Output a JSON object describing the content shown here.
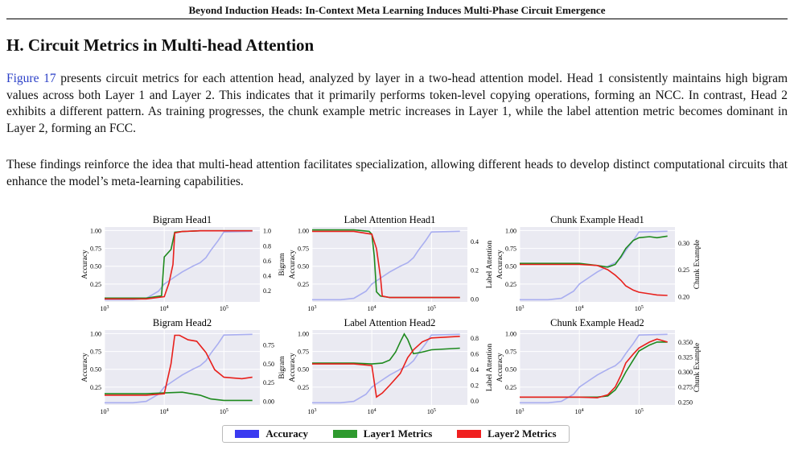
{
  "header": {
    "running_title": "Beyond Induction Heads: In-Context Meta Learning Induces Multi-Phase Circuit Emergence"
  },
  "section": {
    "title": "H. Circuit Metrics in Multi-head Attention"
  },
  "paragraphs": {
    "p1_link": "Figure 17",
    "p1_text": " presents circuit metrics for each attention head, analyzed by layer in a two-head attention model. Head 1 consistently maintains high bigram values across both Layer 1 and Layer 2. This indicates that it primarily performs token-level copying operations, forming an NCC. In contrast, Head 2 exhibits a different pattern. As training progresses, the chunk example metric increases in Layer 1, while the label attention metric becomes dominant in Layer 2, forming an FCC.",
    "p2_text": "These findings reinforce the idea that multi-head attention facilitates specialization, allowing different heads to develop distinct computational circuits that enhance the model’s meta-learning capabilities."
  },
  "colors": {
    "accuracy": "#a9aef0",
    "layer1": "#1e8a1e",
    "layer2": "#e8201c",
    "panel_bg": "#eaeaf2",
    "legend_accuracy": "#3a3af0",
    "legend_layer1": "#2e9a2e",
    "legend_layer2": "#f02020"
  },
  "legend": {
    "accuracy": "Accuracy",
    "layer1": "Layer1 Metrics",
    "layer2": "Layer2 Metrics"
  },
  "chart_data": [
    {
      "type": "line",
      "title": "Bigram Head1",
      "xlabel": "",
      "ylabel_left": "Accuracy",
      "ylabel_right": "Bigram",
      "x_scale": "log",
      "x_ticks": [
        "10^3",
        "10^4",
        "10^5"
      ],
      "y_left_ticks": [
        "1.00",
        "0.75",
        "0.50",
        "0.25"
      ],
      "y_right_ticks": [
        "1.0",
        "0.8",
        "0.6",
        "0.4",
        "0.2"
      ],
      "y_left_range": [
        0,
        1.05
      ],
      "y_right_range": [
        0.05,
        1.05
      ],
      "x_range": [
        1000,
        400000
      ],
      "accuracy": {
        "x": [
          1000,
          3000,
          5000,
          8000,
          10000,
          15000,
          20000,
          30000,
          40000,
          50000,
          60000,
          80000,
          100000,
          300000
        ],
        "y": [
          0.03,
          0.03,
          0.05,
          0.15,
          0.25,
          0.35,
          0.42,
          0.5,
          0.55,
          0.62,
          0.72,
          0.86,
          0.98,
          0.99
        ]
      },
      "series": [
        {
          "name": "Layer1 Metrics",
          "x": [
            1000,
            5000,
            9000,
            10000,
            13000,
            15000,
            20000,
            40000,
            100000,
            300000
          ],
          "y": [
            0.1,
            0.1,
            0.13,
            0.65,
            0.75,
            0.98,
            0.99,
            1.0,
            1.0,
            1.0
          ]
        },
        {
          "name": "Layer2 Metrics",
          "x": [
            1000,
            5000,
            10000,
            12000,
            14000,
            15000,
            20000,
            40000,
            100000,
            300000
          ],
          "y": [
            0.09,
            0.09,
            0.12,
            0.3,
            0.55,
            0.97,
            0.99,
            1.0,
            1.0,
            1.0
          ]
        }
      ]
    },
    {
      "type": "line",
      "title": "Label Attention Head1",
      "xlabel": "",
      "ylabel_left": "Accuracy",
      "ylabel_right": "Label Attention",
      "x_scale": "log",
      "x_ticks": [
        "10^3",
        "10^4",
        "10^5"
      ],
      "y_left_ticks": [
        "1.00",
        "0.75",
        "0.50",
        "0.25"
      ],
      "y_right_ticks": [
        "0.4",
        "0.2",
        "0.0"
      ],
      "y_left_range": [
        0,
        1.05
      ],
      "y_right_range": [
        -0.02,
        0.5
      ],
      "x_range": [
        1000,
        400000
      ],
      "accuracy": {
        "x": [
          1000,
          3000,
          5000,
          8000,
          10000,
          15000,
          20000,
          30000,
          40000,
          50000,
          60000,
          80000,
          100000,
          300000
        ],
        "y": [
          0.03,
          0.03,
          0.05,
          0.15,
          0.25,
          0.35,
          0.42,
          0.5,
          0.55,
          0.62,
          0.72,
          0.86,
          0.98,
          0.99
        ]
      },
      "series": [
        {
          "name": "Layer1 Metrics",
          "x": [
            1000,
            5000,
            9000,
            10000,
            11000,
            12000,
            14000,
            20000,
            50000,
            300000
          ],
          "y": [
            0.48,
            0.48,
            0.47,
            0.45,
            0.3,
            0.05,
            0.02,
            0.01,
            0.01,
            0.01
          ]
        },
        {
          "name": "Layer2 Metrics",
          "x": [
            1000,
            5000,
            10000,
            12000,
            14000,
            15000,
            20000,
            50000,
            300000
          ],
          "y": [
            0.47,
            0.47,
            0.45,
            0.35,
            0.15,
            0.02,
            0.01,
            0.01,
            0.01
          ]
        }
      ]
    },
    {
      "type": "line",
      "title": "Chunk Example Head1",
      "xlabel": "",
      "ylabel_left": "Accuracy",
      "ylabel_right": "Chunk Example",
      "x_scale": "log",
      "x_ticks": [
        "10^3",
        "10^4",
        "10^5"
      ],
      "y_left_ticks": [
        "1.00",
        "0.75",
        "0.50",
        "0.25"
      ],
      "y_right_ticks": [
        "0.30",
        "0.25",
        "0.20"
      ],
      "y_left_range": [
        0,
        1.05
      ],
      "y_right_range": [
        0.19,
        0.33
      ],
      "x_range": [
        1000,
        400000
      ],
      "accuracy": {
        "x": [
          1000,
          3000,
          5000,
          8000,
          10000,
          15000,
          20000,
          30000,
          40000,
          50000,
          60000,
          80000,
          100000,
          300000
        ],
        "y": [
          0.03,
          0.03,
          0.05,
          0.15,
          0.25,
          0.35,
          0.42,
          0.5,
          0.55,
          0.62,
          0.72,
          0.86,
          0.98,
          0.99
        ]
      },
      "series": [
        {
          "name": "Layer1 Metrics",
          "x": [
            1000,
            10000,
            20000,
            30000,
            40000,
            50000,
            60000,
            80000,
            100000,
            150000,
            200000,
            300000
          ],
          "y": [
            0.262,
            0.262,
            0.258,
            0.255,
            0.26,
            0.275,
            0.29,
            0.305,
            0.31,
            0.312,
            0.31,
            0.313
          ]
        },
        {
          "name": "Layer2 Metrics",
          "x": [
            1000,
            10000,
            20000,
            30000,
            40000,
            50000,
            60000,
            80000,
            100000,
            150000,
            200000,
            300000
          ],
          "y": [
            0.26,
            0.26,
            0.258,
            0.25,
            0.24,
            0.23,
            0.22,
            0.212,
            0.208,
            0.205,
            0.203,
            0.202
          ]
        }
      ]
    },
    {
      "type": "line",
      "title": "Bigram Head2",
      "xlabel": "",
      "ylabel_left": "Accuracy",
      "ylabel_right": "Bigram",
      "x_scale": "log",
      "x_ticks": [
        "10^3",
        "10^4",
        "10^5"
      ],
      "y_left_ticks": [
        "1.00",
        "0.75",
        "0.50",
        "0.25"
      ],
      "y_right_ticks": [
        "0.75",
        "0.50",
        "0.25",
        "0.00"
      ],
      "y_left_range": [
        0,
        1.05
      ],
      "y_right_range": [
        -0.05,
        0.95
      ],
      "x_range": [
        1000,
        400000
      ],
      "accuracy": {
        "x": [
          1000,
          3000,
          5000,
          8000,
          10000,
          15000,
          20000,
          30000,
          40000,
          50000,
          60000,
          80000,
          100000,
          300000
        ],
        "y": [
          0.03,
          0.03,
          0.05,
          0.15,
          0.25,
          0.35,
          0.42,
          0.5,
          0.55,
          0.62,
          0.72,
          0.86,
          0.98,
          0.99
        ]
      },
      "series": [
        {
          "name": "Layer1 Metrics",
          "x": [
            1000,
            5000,
            10000,
            20000,
            40000,
            60000,
            100000,
            300000
          ],
          "y": [
            0.1,
            0.1,
            0.11,
            0.12,
            0.08,
            0.03,
            0.01,
            0.01
          ]
        },
        {
          "name": "Layer2 Metrics",
          "x": [
            1000,
            5000,
            10000,
            13000,
            15000,
            18000,
            25000,
            35000,
            50000,
            70000,
            100000,
            200000,
            300000
          ],
          "y": [
            0.08,
            0.08,
            0.1,
            0.5,
            0.88,
            0.88,
            0.82,
            0.8,
            0.65,
            0.42,
            0.32,
            0.3,
            0.32
          ]
        }
      ]
    },
    {
      "type": "line",
      "title": "Label Attention Head2",
      "xlabel": "",
      "ylabel_left": "Accuracy",
      "ylabel_right": "Label Attention",
      "x_scale": "log",
      "x_ticks": [
        "10^3",
        "10^4",
        "10^5"
      ],
      "y_left_ticks": [
        "1.00",
        "0.75",
        "0.50",
        "0.25"
      ],
      "y_right_ticks": [
        "0.8",
        "0.6",
        "0.4",
        "0.2",
        "0.0"
      ],
      "y_left_range": [
        0,
        1.05
      ],
      "y_right_range": [
        -0.05,
        0.9
      ],
      "x_range": [
        1000,
        400000
      ],
      "accuracy": {
        "x": [
          1000,
          3000,
          5000,
          8000,
          10000,
          15000,
          20000,
          30000,
          40000,
          50000,
          60000,
          80000,
          100000,
          300000
        ],
        "y": [
          0.03,
          0.03,
          0.05,
          0.15,
          0.25,
          0.35,
          0.42,
          0.5,
          0.55,
          0.62,
          0.72,
          0.86,
          0.98,
          0.99
        ]
      },
      "series": [
        {
          "name": "Layer1 Metrics",
          "x": [
            1000,
            5000,
            10000,
            15000,
            20000,
            25000,
            30000,
            35000,
            40000,
            50000,
            70000,
            100000,
            300000
          ],
          "y": [
            0.48,
            0.48,
            0.47,
            0.48,
            0.52,
            0.62,
            0.75,
            0.85,
            0.78,
            0.6,
            0.62,
            0.65,
            0.67
          ]
        },
        {
          "name": "Layer2 Metrics",
          "x": [
            1000,
            5000,
            10000,
            12000,
            15000,
            20000,
            30000,
            40000,
            50000,
            70000,
            100000,
            300000
          ],
          "y": [
            0.47,
            0.47,
            0.45,
            0.05,
            0.1,
            0.2,
            0.35,
            0.55,
            0.65,
            0.75,
            0.8,
            0.82
          ]
        }
      ]
    },
    {
      "type": "line",
      "title": "Chunk Example Head2",
      "xlabel": "",
      "ylabel_left": "Accuracy",
      "ylabel_right": "Chunk Example",
      "x_scale": "log",
      "x_ticks": [
        "10^3",
        "10^4",
        "10^5"
      ],
      "y_left_ticks": [
        "1.00",
        "0.75",
        "0.50",
        "0.25"
      ],
      "y_right_ticks": [
        "0.350",
        "0.325",
        "0.300",
        "0.275",
        "0.250"
      ],
      "y_left_range": [
        0,
        1.05
      ],
      "y_right_range": [
        0.245,
        0.37
      ],
      "x_range": [
        1000,
        400000
      ],
      "accuracy": {
        "x": [
          1000,
          3000,
          5000,
          8000,
          10000,
          15000,
          20000,
          30000,
          40000,
          50000,
          60000,
          80000,
          100000,
          300000
        ],
        "y": [
          0.03,
          0.03,
          0.05,
          0.15,
          0.25,
          0.35,
          0.42,
          0.5,
          0.55,
          0.62,
          0.72,
          0.86,
          0.98,
          0.99
        ]
      },
      "series": [
        {
          "name": "Layer1 Metrics",
          "x": [
            1000,
            10000,
            20000,
            30000,
            40000,
            50000,
            60000,
            80000,
            100000,
            150000,
            200000,
            300000
          ],
          "y": [
            0.258,
            0.258,
            0.258,
            0.26,
            0.27,
            0.285,
            0.3,
            0.32,
            0.335,
            0.345,
            0.35,
            0.35
          ]
        },
        {
          "name": "Layer2 Metrics",
          "x": [
            1000,
            10000,
            20000,
            30000,
            40000,
            50000,
            60000,
            80000,
            100000,
            150000,
            200000,
            300000
          ],
          "y": [
            0.258,
            0.258,
            0.257,
            0.262,
            0.275,
            0.295,
            0.315,
            0.33,
            0.34,
            0.35,
            0.355,
            0.35
          ]
        }
      ]
    }
  ]
}
